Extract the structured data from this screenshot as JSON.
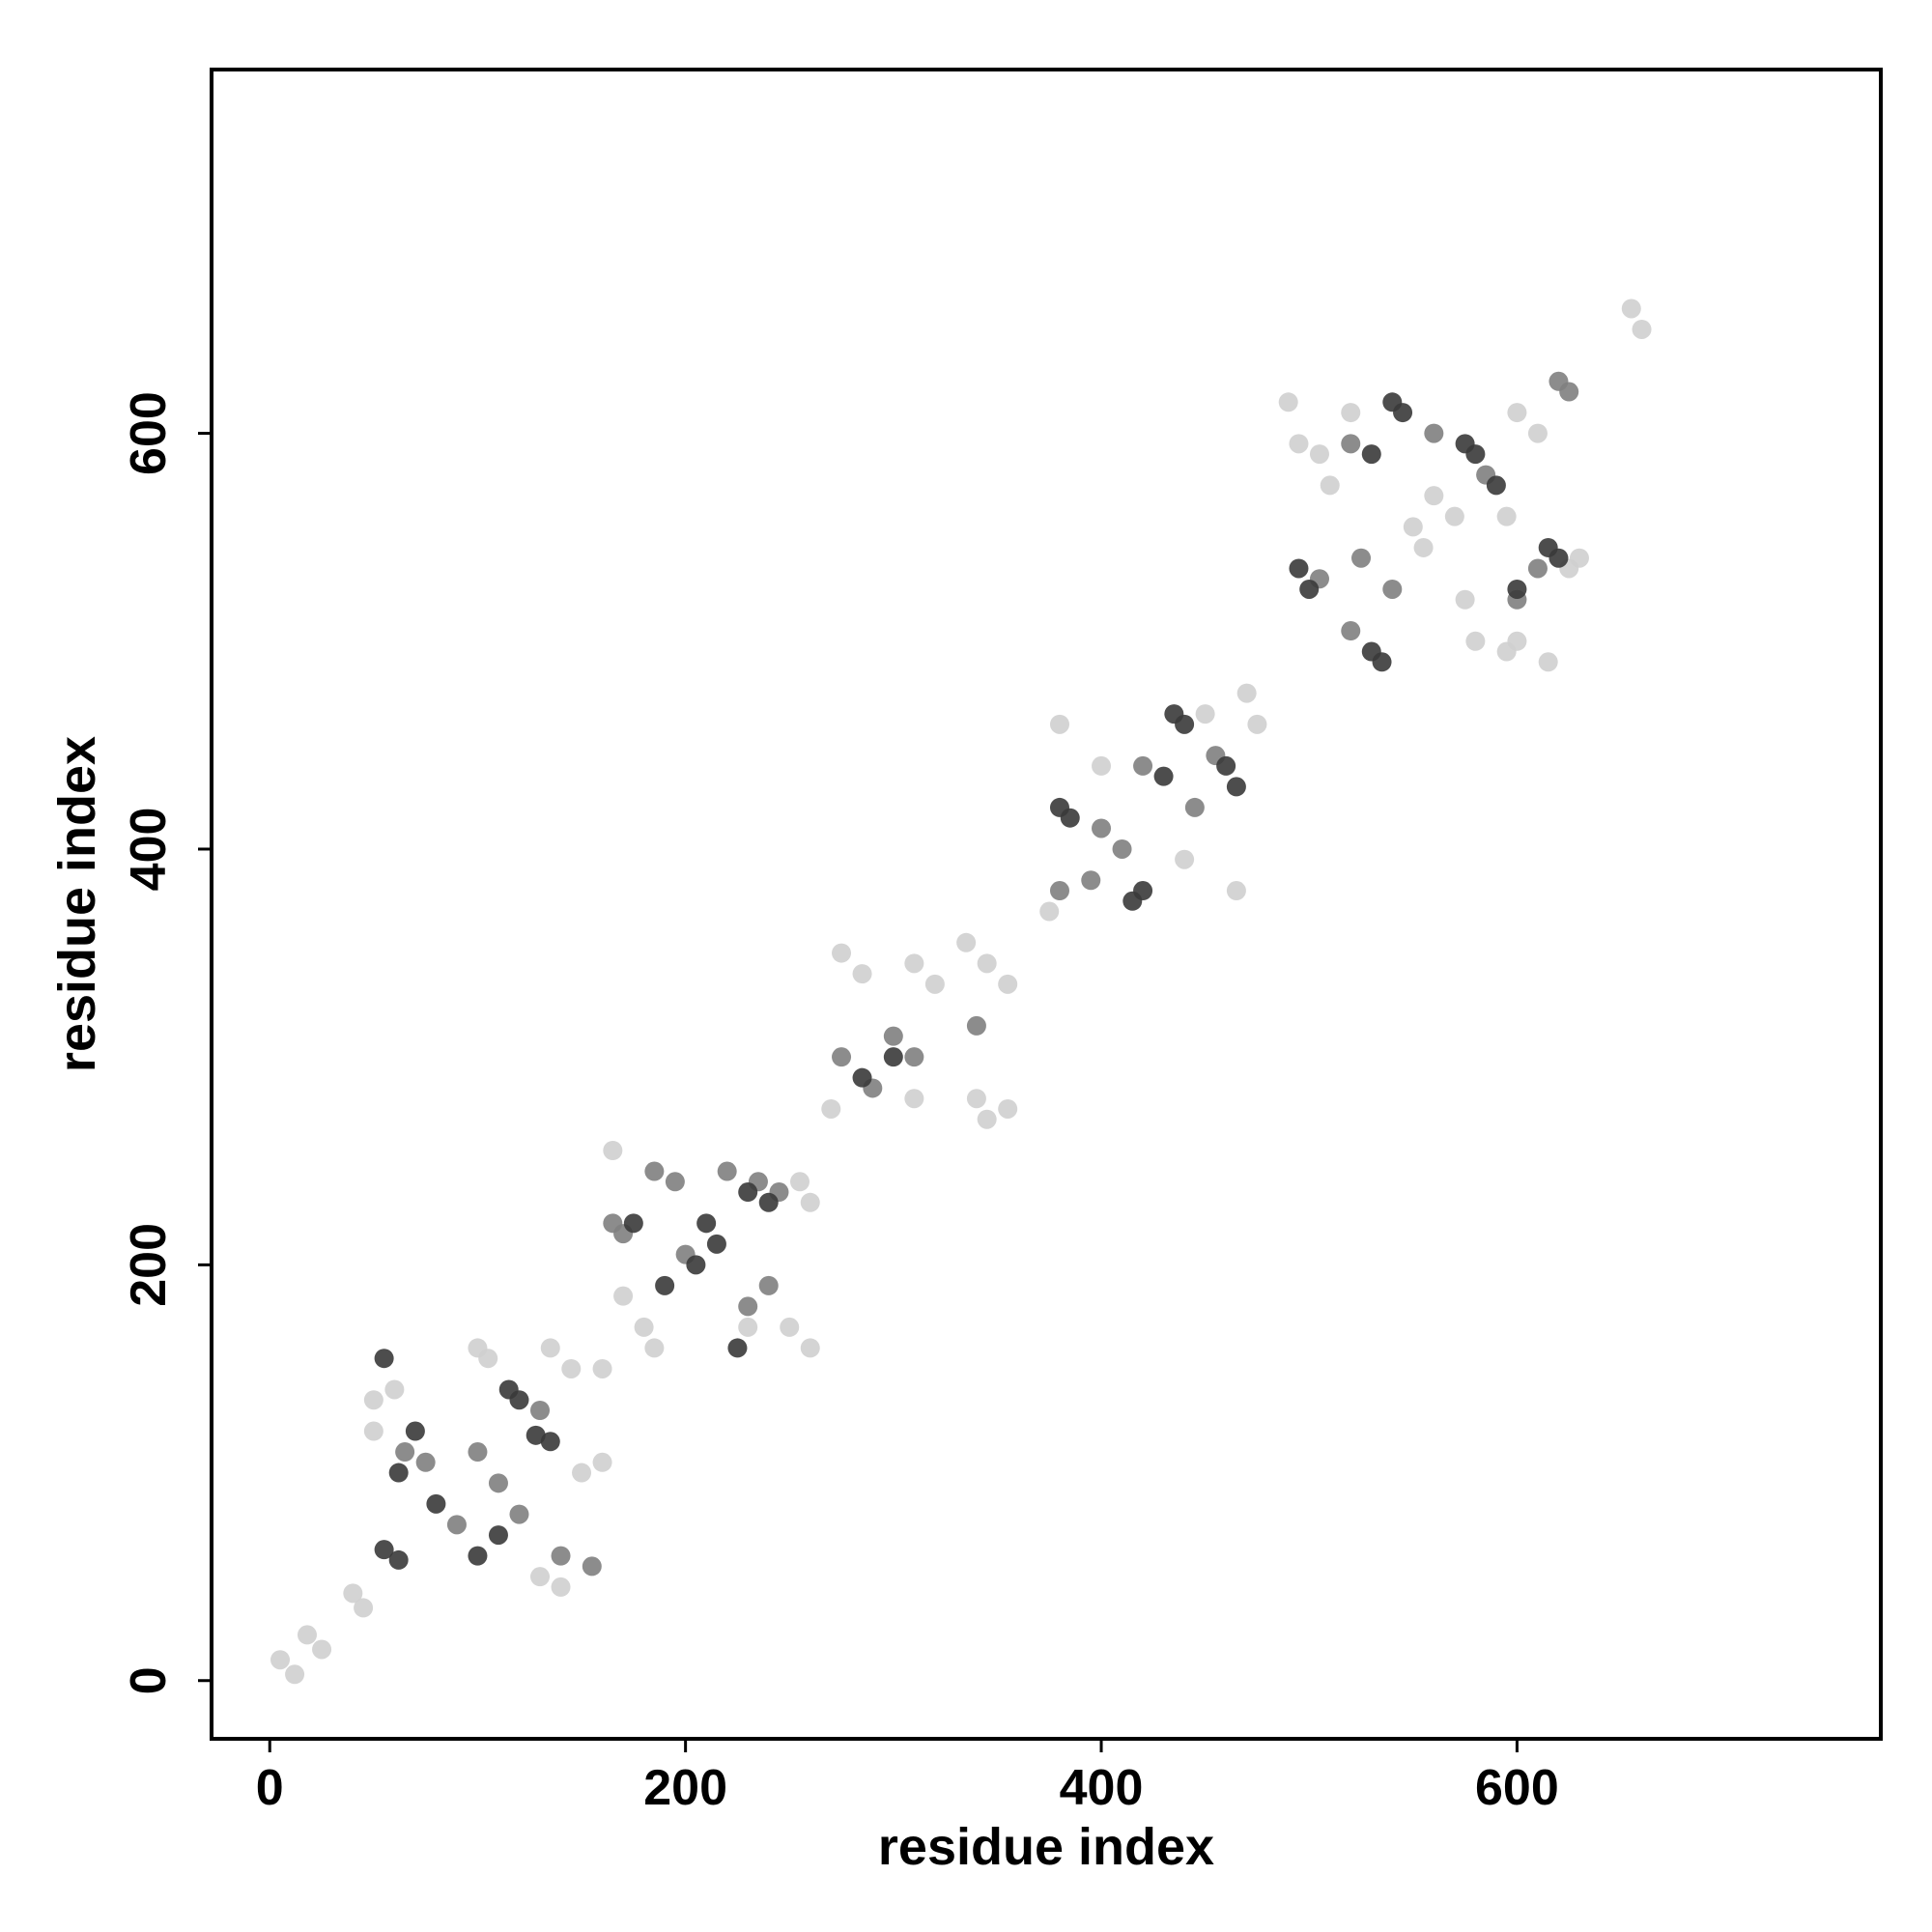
{
  "chart_data": {
    "type": "scatter",
    "x_label": "residue index",
    "y_label": "residue index",
    "xlim": [
      -28,
      775
    ],
    "ylim": [
      -28,
      775
    ],
    "xticks": [
      0,
      200,
      400,
      600
    ],
    "yticks": [
      0,
      200,
      400,
      600
    ],
    "grid": false,
    "series": [
      {
        "color": "#cfcfcf",
        "x": [
          5,
          12,
          18,
          25,
          40,
          45,
          50,
          50,
          60,
          100,
          105,
          135,
          145,
          160,
          150,
          160,
          140,
          130,
          165,
          170,
          180,
          185,
          230,
          250,
          255,
          260,
          260,
          270,
          275,
          285,
          310,
          320,
          335,
          345,
          355,
          340,
          345,
          355,
          310,
          380,
          375,
          400,
          450,
          470,
          475,
          465,
          440,
          490,
          495,
          505,
          510,
          520,
          550,
          555,
          560,
          570,
          575,
          580,
          595,
          600,
          610,
          615,
          625,
          630,
          655,
          660,
          595,
          600
        ],
        "values": [
          10,
          3,
          22,
          15,
          42,
          35,
          135,
          120,
          140,
          160,
          155,
          160,
          150,
          150,
          100,
          105,
          45,
          50,
          255,
          185,
          170,
          160,
          170,
          170,
          240,
          230,
          160,
          275,
          350,
          340,
          345,
          335,
          355,
          345,
          335,
          280,
          270,
          275,
          280,
          460,
          370,
          440,
          465,
          475,
          460,
          380,
          395,
          615,
          595,
          590,
          575,
          610,
          555,
          545,
          570,
          560,
          520,
          500,
          495,
          610,
          600,
          490,
          535,
          540,
          660,
          650,
          560,
          500
        ]
      },
      {
        "color": "#808080",
        "x": [
          65,
          75,
          90,
          100,
          110,
          120,
          130,
          140,
          155,
          185,
          195,
          200,
          220,
          235,
          245,
          165,
          170,
          230,
          240,
          300,
          310,
          290,
          275,
          340,
          380,
          400,
          410,
          395,
          420,
          445,
          505,
          520,
          525,
          540,
          520,
          560,
          585,
          600,
          610,
          620,
          625,
          455
        ],
        "values": [
          110,
          105,
          75,
          110,
          95,
          80,
          130,
          60,
          55,
          245,
          240,
          205,
          245,
          240,
          235,
          220,
          215,
          180,
          190,
          310,
          300,
          285,
          300,
          315,
          380,
          410,
          400,
          385,
          440,
          420,
          530,
          505,
          540,
          525,
          595,
          600,
          580,
          520,
          535,
          625,
          620,
          445
        ]
      },
      {
        "color": "#3a3a3a",
        "x": [
          55,
          55,
          62,
          70,
          80,
          62,
          115,
          120,
          110,
          100,
          128,
          135,
          210,
          215,
          205,
          190,
          230,
          240,
          225,
          175,
          285,
          300,
          380,
          385,
          420,
          415,
          435,
          440,
          430,
          460,
          465,
          495,
          500,
          530,
          535,
          540,
          545,
          530,
          575,
          580,
          590,
          615,
          620,
          600
        ],
        "values": [
          155,
          63,
          58,
          120,
          85,
          100,
          140,
          135,
          70,
          60,
          118,
          115,
          220,
          210,
          200,
          190,
          235,
          230,
          160,
          220,
          290,
          300,
          420,
          415,
          380,
          375,
          465,
          460,
          435,
          440,
          430,
          535,
          525,
          495,
          490,
          615,
          610,
          590,
          595,
          590,
          575,
          545,
          540,
          525
        ]
      }
    ]
  }
}
